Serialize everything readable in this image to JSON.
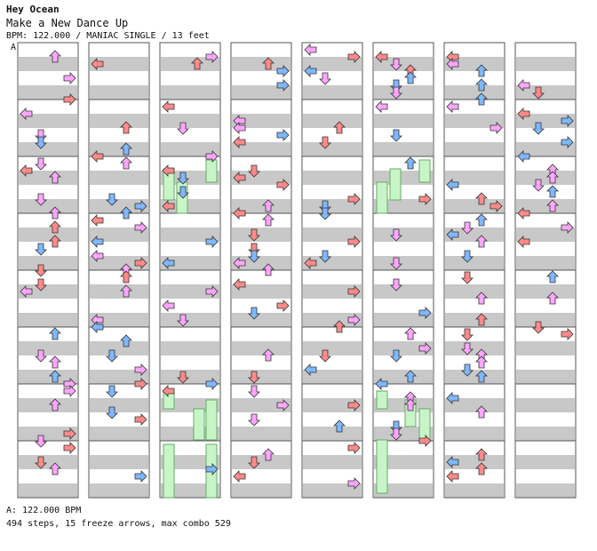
{
  "header": {
    "artist": "Hey Ocean",
    "title": "Make a New Dance Up",
    "meta": "BPM: 122.000 / MANIAC SINGLE / 13 feet"
  },
  "section_marker": "A",
  "footer": {
    "bpm_line": "A: 122.000 BPM",
    "stats_line": "494 steps, 15 freeze arrows, max combo 529"
  },
  "colors": {
    "quarter": "#ff8a8a",
    "eighth": "#7fb8ff",
    "sixteenth": "#ffa6ff",
    "freeze": "#c8f5c8",
    "stripe": "#c8c8c8",
    "border": "#555555"
  }
}
